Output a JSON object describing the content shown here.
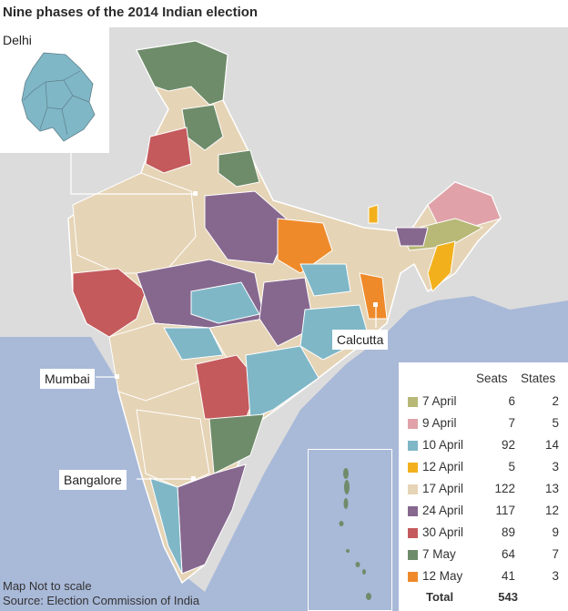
{
  "title": "Nine phases of the 2014 Indian election",
  "inset_label": "Delhi",
  "city_labels": {
    "mumbai": "Mumbai",
    "bangalore": "Bangalore",
    "calcutta": "Calcutta"
  },
  "legend": {
    "header_seats": "Seats",
    "header_states": "States",
    "phases": [
      {
        "label": "7 April",
        "seats": "6",
        "states": "2",
        "color": "#b8b877"
      },
      {
        "label": "9 April",
        "seats": "7",
        "states": "5",
        "color": "#e0a2a8"
      },
      {
        "label": "10 April",
        "seats": "92",
        "states": "14",
        "color": "#7fb7c7"
      },
      {
        "label": "12 April",
        "seats": "5",
        "states": "3",
        "color": "#f2b11c"
      },
      {
        "label": "17 April",
        "seats": "122",
        "states": "13",
        "color": "#e6d4b6"
      },
      {
        "label": "24 April",
        "seats": "117",
        "states": "12",
        "color": "#86688f"
      },
      {
        "label": "30 April",
        "seats": "89",
        "states": "9",
        "color": "#c45a5c"
      },
      {
        "label": "7 May",
        "seats": "64",
        "states": "7",
        "color": "#6f8c6a"
      },
      {
        "label": "12 May",
        "seats": "41",
        "states": "3",
        "color": "#ef8a2a"
      }
    ],
    "total_label": "Total",
    "total_value": "543"
  },
  "footnote": {
    "line1": "Map Not to scale",
    "line2": "Source: Election Commission of India"
  },
  "colors": {
    "sea": "#a9b9d8",
    "land_outside": "#dcdcdc",
    "border": "#ffffff"
  }
}
